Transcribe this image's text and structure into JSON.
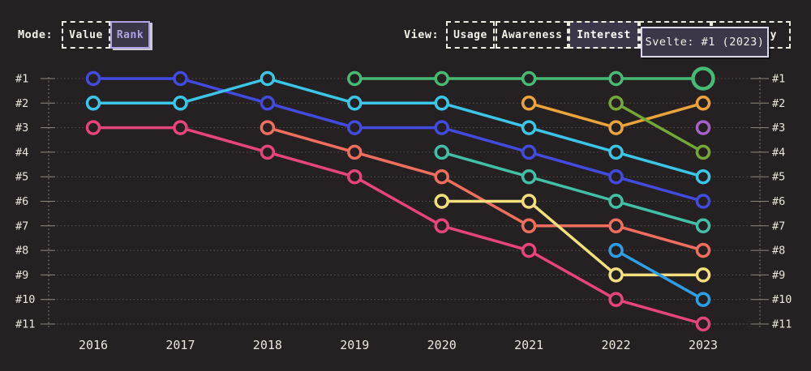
{
  "header": {
    "mode": {
      "label": "Mode:",
      "options": [
        {
          "label": "Value",
          "selected": false
        },
        {
          "label": "Rank",
          "selected": true
        }
      ]
    },
    "view": {
      "label": "View:",
      "options": [
        {
          "label": "Usage",
          "selected": false
        },
        {
          "label": "Awareness",
          "selected": false
        },
        {
          "label": "Interest",
          "selected": true
        },
        {
          "label": "",
          "selected": false
        },
        {
          "label": "ty",
          "selected": false
        }
      ]
    },
    "tooltip": {
      "text": "Svelte: #1 (2023)"
    }
  },
  "chart_data": {
    "type": "line",
    "variant": "bump-rank-chart",
    "title": "",
    "x_labels": [
      "2016",
      "2017",
      "2018",
      "2019",
      "2020",
      "2021",
      "2022",
      "2023"
    ],
    "rank_labels": [
      "#1",
      "#2",
      "#3",
      "#4",
      "#5",
      "#6",
      "#7",
      "#8",
      "#9",
      "#10",
      "#11"
    ],
    "ylim": [
      1,
      11
    ],
    "grid": "dotted-horizontal, dual dotted vertical axes, rank labels both sides",
    "background": "#252021",
    "highlight": {
      "series_index": 4,
      "year": "2023",
      "rank": 1,
      "tooltip": "Svelte: #1 (2023)"
    },
    "series": [
      {
        "name": "series-indigo",
        "color": "#424be0",
        "points": [
          [
            "2016",
            1
          ],
          [
            "2017",
            1
          ],
          [
            "2018",
            2
          ],
          [
            "2019",
            3
          ],
          [
            "2020",
            3
          ],
          [
            "2021",
            4
          ],
          [
            "2022",
            5
          ],
          [
            "2023",
            6
          ]
        ]
      },
      {
        "name": "series-cyan",
        "color": "#3bc6e8",
        "points": [
          [
            "2016",
            2
          ],
          [
            "2017",
            2
          ],
          [
            "2018",
            1
          ],
          [
            "2019",
            2
          ],
          [
            "2020",
            2
          ],
          [
            "2021",
            3
          ],
          [
            "2022",
            4
          ],
          [
            "2023",
            5
          ]
        ]
      },
      {
        "name": "series-rose",
        "color": "#e8447c",
        "points": [
          [
            "2016",
            3
          ],
          [
            "2017",
            3
          ],
          [
            "2018",
            4
          ],
          [
            "2019",
            5
          ],
          [
            "2020",
            7
          ],
          [
            "2021",
            8
          ],
          [
            "2022",
            10
          ],
          [
            "2023",
            11
          ]
        ]
      },
      {
        "name": "series-salmon",
        "color": "#ef6e5e",
        "points": [
          [
            "2018",
            3
          ],
          [
            "2019",
            4
          ],
          [
            "2020",
            5
          ],
          [
            "2021",
            7
          ],
          [
            "2022",
            7
          ],
          [
            "2023",
            8
          ]
        ]
      },
      {
        "name": "series-green-svelte",
        "color": "#47bb74",
        "points": [
          [
            "2019",
            1
          ],
          [
            "2020",
            1
          ],
          [
            "2021",
            1
          ],
          [
            "2022",
            1
          ],
          [
            "2023",
            1
          ]
        ]
      },
      {
        "name": "series-teal",
        "color": "#41c0a5",
        "points": [
          [
            "2020",
            4
          ],
          [
            "2021",
            5
          ],
          [
            "2022",
            6
          ],
          [
            "2023",
            7
          ]
        ]
      },
      {
        "name": "series-yellow",
        "color": "#f3e07c",
        "points": [
          [
            "2020",
            6
          ],
          [
            "2021",
            6
          ],
          [
            "2022",
            9
          ],
          [
            "2023",
            9
          ]
        ]
      },
      {
        "name": "series-orange",
        "color": "#eaa43b",
        "points": [
          [
            "2021",
            2
          ],
          [
            "2022",
            3
          ],
          [
            "2023",
            2
          ]
        ]
      },
      {
        "name": "series-olive",
        "color": "#73a837",
        "points": [
          [
            "2022",
            2
          ],
          [
            "2023",
            4
          ]
        ]
      },
      {
        "name": "series-sky",
        "color": "#2d9fe6",
        "points": [
          [
            "2022",
            8
          ],
          [
            "2023",
            10
          ]
        ]
      },
      {
        "name": "series-purple",
        "color": "#a562c9",
        "points": [
          [
            "2023",
            3
          ]
        ]
      }
    ]
  }
}
